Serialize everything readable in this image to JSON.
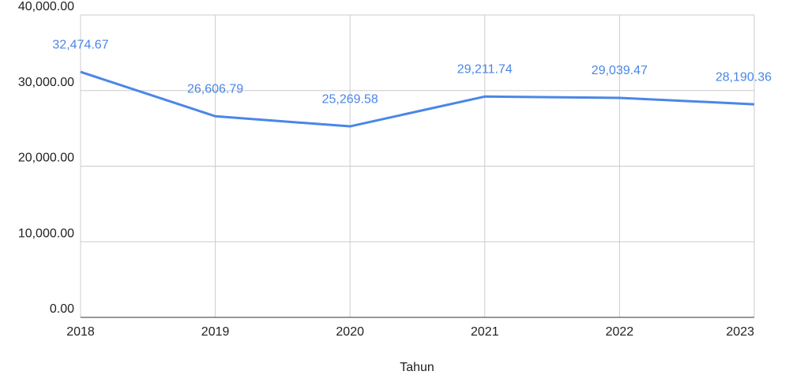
{
  "chart_data": {
    "type": "line",
    "x_label": "Tahun",
    "categories": [
      "2018",
      "2019",
      "2020",
      "2021",
      "2022",
      "2023"
    ],
    "series": [
      {
        "color": "#4a86e8",
        "values": [
          32474.67,
          26606.79,
          25269.58,
          29211.74,
          29039.47,
          28190.36
        ],
        "value_labels": [
          "32,474.67",
          "26,606.79",
          "25,269.58",
          "29,211.74",
          "29,039.47",
          "28,190.36"
        ]
      }
    ],
    "ylim": [
      0,
      40000
    ],
    "yticks": [
      {
        "value": 0,
        "label": "0.00"
      },
      {
        "value": 10000,
        "label": "10,000.00"
      },
      {
        "value": 20000,
        "label": "20,000.00"
      },
      {
        "value": 30000,
        "label": "30,000.00"
      },
      {
        "value": 40000,
        "label": "40,000.00"
      }
    ],
    "grid": true
  }
}
